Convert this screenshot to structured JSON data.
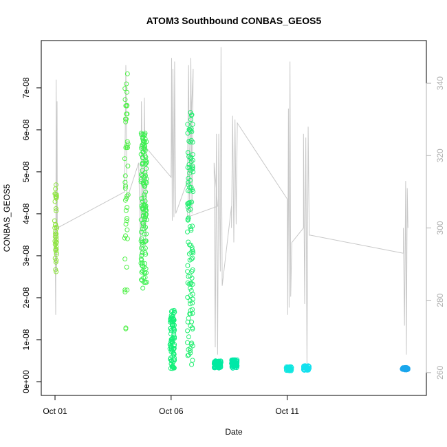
{
  "chart_data": {
    "type": "scatter",
    "title": "ATOM3 Southbound CONBAS_GEOS5",
    "xlabel": "Date",
    "ylabel": "CONBAS_GEOS5",
    "x_range_days": [
      1,
      16.4
    ],
    "x_ticks": [
      {
        "day": 1,
        "label": "Oct 01"
      },
      {
        "day": 6,
        "label": "Oct 06"
      },
      {
        "day": 11,
        "label": "Oct 11"
      }
    ],
    "ylim": [
      0,
      7.8e-08
    ],
    "y_ticks": [
      {
        "value": 0,
        "label": "0e+00"
      },
      {
        "value": 1e-08,
        "label": "1e-08"
      },
      {
        "value": 2e-08,
        "label": "2e-08"
      },
      {
        "value": 3e-08,
        "label": "3e-08"
      },
      {
        "value": 4e-08,
        "label": "4e-08"
      },
      {
        "value": 5e-08,
        "label": "5e-08"
      },
      {
        "value": 6e-08,
        "label": "6e-08"
      },
      {
        "value": 7e-08,
        "label": "7e-08"
      }
    ],
    "y2lim": [
      257.5,
      348
    ],
    "y2_ticks": [
      {
        "value": 260,
        "label": "260"
      },
      {
        "value": 280,
        "label": "280"
      },
      {
        "value": 300,
        "label": "300"
      },
      {
        "value": 320,
        "label": "320"
      },
      {
        "value": 340,
        "label": "340"
      }
    ],
    "secondary_line_color": "#c8c8c8",
    "scatter_groups": [
      {
        "x_range": [
          0.98,
          1.08
        ],
        "y_range": [
          2.6e-08,
          4.7e-08
        ],
        "count": 40,
        "color": "#8ee53f"
      },
      {
        "x_range": [
          4.0,
          4.15
        ],
        "y_range": [
          1.2e-08,
          7.35e-08
        ],
        "count": 45,
        "color": "#50f048"
      },
      {
        "x_range": [
          4.7,
          4.95
        ],
        "y_range": [
          2.2e-08,
          5.95e-08
        ],
        "count": 130,
        "color": "#3cf050"
      },
      {
        "x_range": [
          5.95,
          6.15
        ],
        "y_range": [
          3e-09,
          1.7e-08
        ],
        "count": 90,
        "color": "#14f078"
      },
      {
        "x_range": [
          6.7,
          6.95
        ],
        "y_range": [
          4e-09,
          6.6e-08
        ],
        "count": 120,
        "color": "#22ee70"
      },
      {
        "x_range": [
          7.85,
          8.15
        ],
        "y_range": [
          3.2e-09,
          5e-09
        ],
        "count": 80,
        "color": "#00eaa0"
      },
      {
        "x_range": [
          8.6,
          8.85
        ],
        "y_range": [
          3.2e-09,
          5.3e-09
        ],
        "count": 70,
        "color": "#00e8a8"
      },
      {
        "x_range": [
          10.95,
          11.2
        ],
        "y_range": [
          2.6e-09,
          3.6e-09
        ],
        "count": 40,
        "color": "#10e6e0"
      },
      {
        "x_range": [
          11.7,
          11.95
        ],
        "y_range": [
          2.7e-09,
          3.8e-09
        ],
        "count": 45,
        "color": "#14e0ee"
      },
      {
        "x_range": [
          15.95,
          16.2
        ],
        "y_range": [
          2.8e-09,
          3.4e-09
        ],
        "count": 60,
        "color": "#1aa6ec"
      }
    ],
    "secondary_line": [
      [
        1.0,
        300
      ],
      [
        1.03,
        276
      ],
      [
        1.05,
        341
      ],
      [
        1.07,
        288
      ],
      [
        1.09,
        335
      ],
      [
        1.1,
        300
      ],
      [
        4.0,
        310
      ],
      [
        4.05,
        345
      ],
      [
        4.08,
        325
      ],
      [
        4.1,
        308
      ],
      [
        4.6,
        318
      ],
      [
        4.7,
        292
      ],
      [
        4.72,
        335
      ],
      [
        4.8,
        300
      ],
      [
        4.85,
        336
      ],
      [
        4.9,
        295
      ],
      [
        4.95,
        322
      ],
      [
        6.0,
        314
      ],
      [
        6.02,
        347
      ],
      [
        6.05,
        302
      ],
      [
        6.08,
        344
      ],
      [
        6.12,
        303
      ],
      [
        6.15,
        346
      ],
      [
        6.2,
        304
      ],
      [
        6.7,
        313
      ],
      [
        6.75,
        345
      ],
      [
        6.8,
        303
      ],
      [
        6.85,
        347
      ],
      [
        6.9,
        304
      ],
      [
        6.95,
        344
      ],
      [
        6.7,
        303
      ],
      [
        8.0,
        306
      ],
      [
        7.85,
        318
      ],
      [
        7.9,
        267
      ],
      [
        7.95,
        326
      ],
      [
        8.0,
        265
      ],
      [
        8.05,
        326
      ],
      [
        8.12,
        288
      ],
      [
        8.15,
        350
      ],
      [
        8.2,
        284
      ],
      [
        8.6,
        306
      ],
      [
        8.6,
        300
      ],
      [
        8.65,
        331
      ],
      [
        8.7,
        296
      ],
      [
        8.75,
        330
      ],
      [
        8.8,
        301
      ],
      [
        8.85,
        329
      ],
      [
        11.0,
        308
      ],
      [
        11.02,
        276
      ],
      [
        11.05,
        333
      ],
      [
        11.08,
        278
      ],
      [
        11.12,
        346
      ],
      [
        11.15,
        281
      ],
      [
        11.2,
        296
      ],
      [
        11.7,
        300
      ],
      [
        11.7,
        326
      ],
      [
        11.75,
        279
      ],
      [
        11.8,
        325
      ],
      [
        11.85,
        262
      ],
      [
        11.9,
        328
      ],
      [
        11.95,
        298
      ],
      [
        12.0,
        298
      ],
      [
        16.0,
        293
      ],
      [
        16.0,
        300
      ],
      [
        16.05,
        273
      ],
      [
        16.1,
        313
      ],
      [
        16.13,
        265
      ],
      [
        16.17,
        311
      ],
      [
        16.2,
        300
      ]
    ]
  }
}
